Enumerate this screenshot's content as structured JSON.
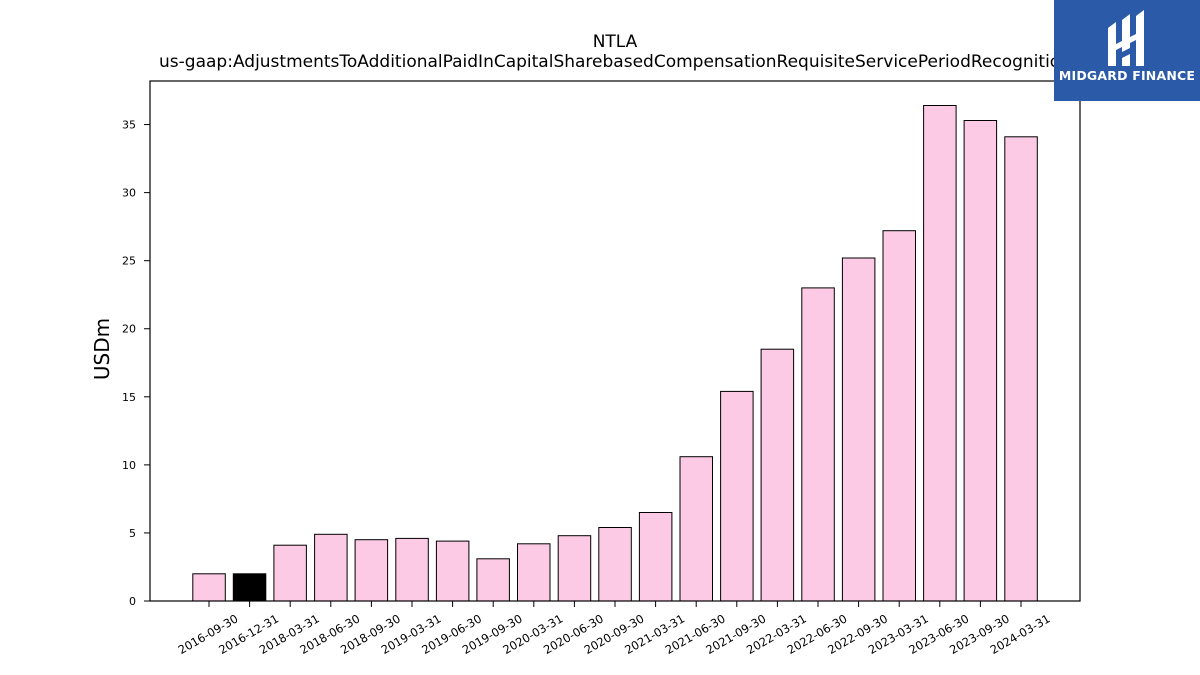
{
  "chart_data": {
    "type": "bar",
    "title": "NTLA",
    "subtitle": "us-gaap:AdjustmentsToAdditionalPaidInCapitalSharebasedCompensationRequisiteServicePeriodRecognition",
    "ylabel": "USDm",
    "xlabel": "",
    "ylim": [
      0,
      38.2
    ],
    "yticks": [
      0,
      5,
      10,
      15,
      20,
      25,
      30,
      35
    ],
    "categories": [
      "2016-09-30",
      "2016-12-31",
      "2018-03-31",
      "2018-06-30",
      "2018-09-30",
      "2019-03-31",
      "2019-06-30",
      "2019-09-30",
      "2020-03-31",
      "2020-06-30",
      "2020-09-30",
      "2021-03-31",
      "2021-06-30",
      "2021-09-30",
      "2022-03-31",
      "2022-06-30",
      "2022-09-30",
      "2023-03-31",
      "2023-06-30",
      "2023-09-30",
      "2024-03-31"
    ],
    "values": [
      2.0,
      2.0,
      4.1,
      4.9,
      4.5,
      4.6,
      4.4,
      3.1,
      4.2,
      4.8,
      5.4,
      6.5,
      10.6,
      15.4,
      18.5,
      23.0,
      25.2,
      27.2,
      36.4,
      35.3,
      34.1
    ],
    "highlight_index": 1,
    "colors": {
      "bar": "#fccae4",
      "highlight": "#000000",
      "edge": "#000000"
    },
    "grid": false,
    "legend": "none"
  },
  "logo": {
    "text": "MIDGARD FINANCE",
    "background": "#2b5aa8"
  }
}
